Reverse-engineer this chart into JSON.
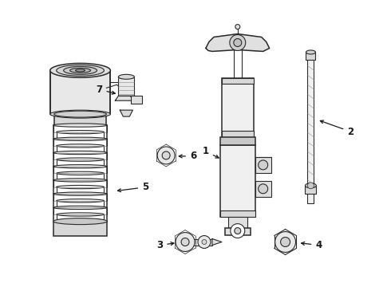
{
  "bg_color": "#ffffff",
  "line_color": "#2a2a2a",
  "label_color": "#1a1a1a",
  "figsize": [
    4.9,
    3.6
  ],
  "dpi": 100
}
